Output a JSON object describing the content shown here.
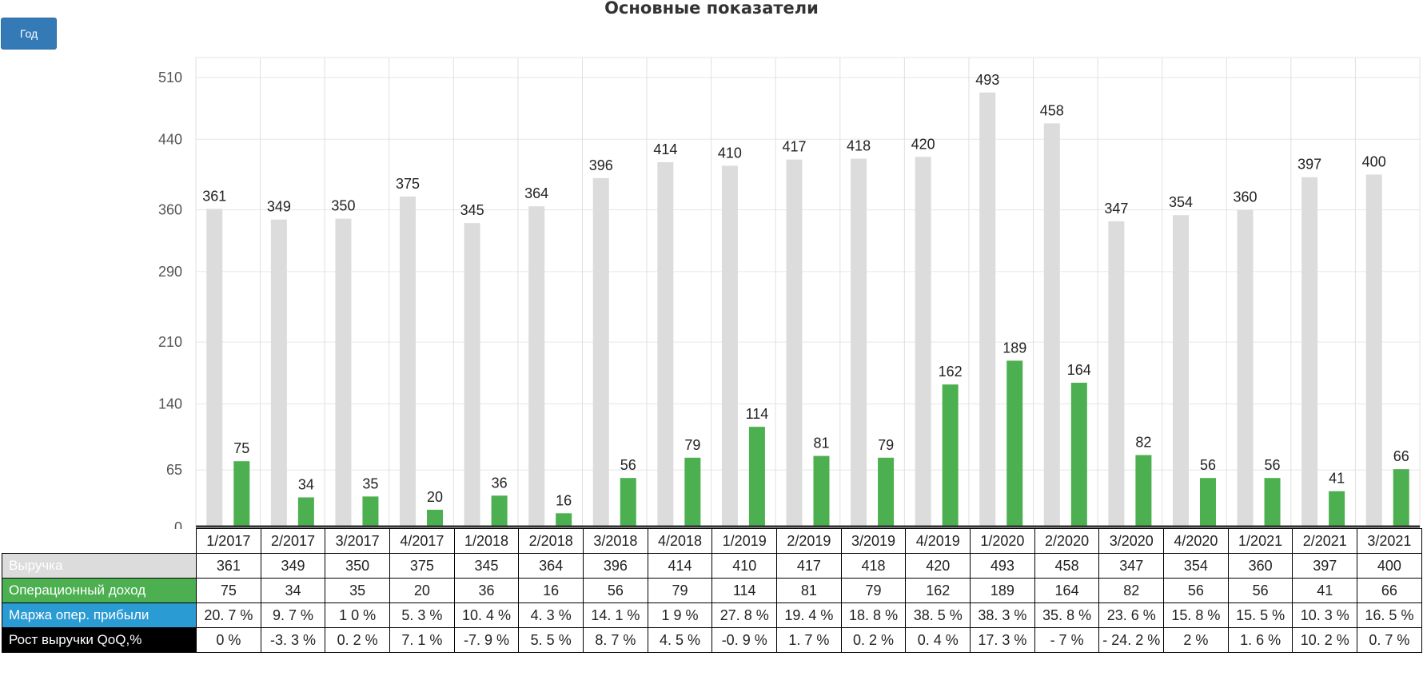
{
  "title": "Основные показатели",
  "period_button": "Год",
  "colors": {
    "revenue": "#dcdcdc",
    "operating_income": "#4caf50",
    "margin": "#2b9bd3",
    "growth": "#000000"
  },
  "chart_data": {
    "type": "bar",
    "categories": [
      "1/2017",
      "2/2017",
      "3/2017",
      "4/2017",
      "1/2018",
      "2/2018",
      "3/2018",
      "4/2018",
      "1/2019",
      "2/2019",
      "3/2019",
      "4/2019",
      "1/2020",
      "2/2020",
      "3/2020",
      "4/2020",
      "1/2021",
      "2/2021",
      "3/2021"
    ],
    "series": [
      {
        "name": "Выручка",
        "values": [
          361,
          349,
          350,
          375,
          345,
          364,
          396,
          414,
          410,
          417,
          418,
          420,
          493,
          458,
          347,
          354,
          360,
          397,
          400
        ]
      },
      {
        "name": "Операционный доход",
        "values": [
          75,
          34,
          35,
          20,
          36,
          16,
          56,
          79,
          114,
          81,
          79,
          162,
          189,
          164,
          82,
          56,
          56,
          41,
          66
        ]
      }
    ],
    "yticks": [
      0,
      65,
      140,
      210,
      290,
      360,
      440,
      510
    ],
    "ylim": [
      0,
      510
    ],
    "grid": true
  },
  "table": {
    "rows": [
      {
        "label": "Выручка",
        "values": [
          "361",
          "349",
          "350",
          "375",
          "345",
          "364",
          "396",
          "414",
          "410",
          "417",
          "418",
          "420",
          "493",
          "458",
          "347",
          "354",
          "360",
          "397",
          "400"
        ]
      },
      {
        "label": "Операционный доход",
        "values": [
          "75",
          "34",
          "35",
          "20",
          "36",
          "16",
          "56",
          "79",
          "114",
          "81",
          "79",
          "162",
          "189",
          "164",
          "82",
          "56",
          "56",
          "41",
          "66"
        ]
      },
      {
        "label": "Маржа опер. прибыли",
        "values": [
          "20. 7 %",
          "9. 7 %",
          "1 0 %",
          "5. 3 %",
          "10. 4 %",
          "4. 3 %",
          "14. 1 %",
          "1 9 %",
          "27. 8 %",
          "19. 4 %",
          "18. 8 %",
          "38. 5 %",
          "38. 3 %",
          "35. 8 %",
          "23. 6 %",
          "15. 8 %",
          "15. 5 %",
          "10. 3 %",
          "16. 5 %"
        ]
      },
      {
        "label": "Рост выручки QoQ,%",
        "values": [
          "0 %",
          "-3. 3 %",
          "0. 2 %",
          "7. 1 %",
          "-7. 9 %",
          "5. 5 %",
          "8. 7 %",
          "4. 5 %",
          "-0. 9 %",
          "1. 7 %",
          "0. 2 %",
          "0. 4 %",
          "17. 3 %",
          "- 7 %",
          "- 24. 2 %",
          "2 %",
          "1. 6 %",
          "10. 2 %",
          "0. 7 %"
        ]
      }
    ]
  }
}
